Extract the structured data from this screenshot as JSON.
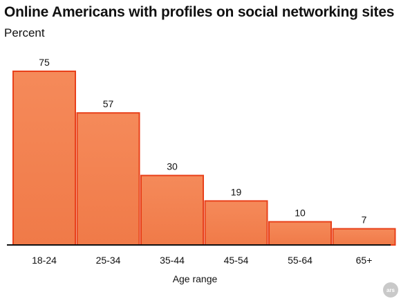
{
  "chart_data": {
    "type": "bar",
    "title": "Online Americans with profiles on social networking sites",
    "subtitle": "Percent",
    "categories": [
      "18-24",
      "25-34",
      "35-44",
      "45-54",
      "55-64",
      "65+"
    ],
    "values": [
      75,
      57,
      30,
      19,
      10,
      7
    ],
    "xlabel": "Age range",
    "ylabel": "",
    "ylim": [
      0,
      75
    ],
    "grid": false,
    "bar_color": "#f07a48",
    "bar_edge_color": "#e8401a",
    "axis_color": "#111111"
  },
  "watermark": "ars"
}
